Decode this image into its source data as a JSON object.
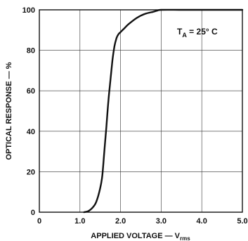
{
  "chart_data": {
    "type": "line",
    "xlabel": "APPLIED VOLTAGE — V",
    "xlabel_subscript": "rms",
    "ylabel": "OPTICAL RESPONSE — %",
    "xlim": [
      0,
      5.0
    ],
    "ylim": [
      0,
      100
    ],
    "x_ticks": [
      "0",
      "1.0",
      "2.0",
      "3.0",
      "4.0",
      "5.0"
    ],
    "x_tick_values": [
      0,
      1,
      2,
      3,
      4,
      5
    ],
    "y_ticks": [
      "0",
      "20",
      "40",
      "60",
      "80",
      "100"
    ],
    "y_tick_values": [
      0,
      20,
      40,
      60,
      80,
      100
    ],
    "grid": true,
    "annotation": {
      "main": "T",
      "subscript": "A",
      "rest": " = 25° C"
    },
    "series": [
      {
        "x": [
          1.1,
          1.2,
          1.3,
          1.4,
          1.5,
          1.55,
          1.6,
          1.65,
          1.7,
          1.75,
          1.8,
          1.85,
          1.9,
          1.95,
          2.0,
          2.1,
          2.2,
          2.4,
          2.6,
          2.8,
          2.9,
          3.0,
          3.5,
          4.0,
          5.0
        ],
        "y": [
          0,
          0.5,
          2,
          5,
          12,
          18,
          30,
          42,
          55,
          65,
          75,
          82,
          86,
          88,
          89,
          91,
          93,
          96,
          98,
          99,
          99.6,
          100,
          100,
          100,
          100
        ]
      }
    ]
  }
}
